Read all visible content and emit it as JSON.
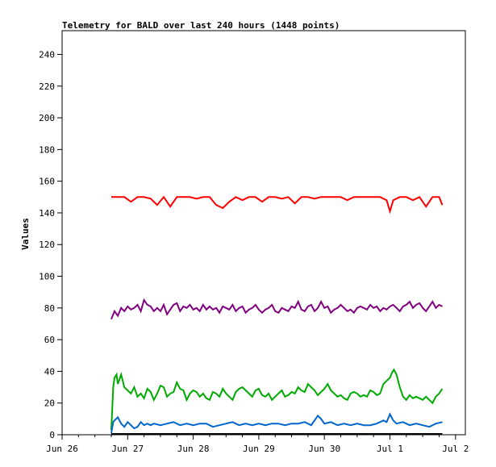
{
  "chart_data": {
    "type": "line",
    "title": "Telemetry for BALD over last 240 hours (1448 points)",
    "xlabel": "",
    "ylabel": "Values",
    "ylim": [
      0,
      255
    ],
    "yticks": [
      0,
      20,
      40,
      60,
      80,
      100,
      120,
      140,
      160,
      180,
      200,
      220,
      240
    ],
    "x_tick_labels": [
      "Jun 26",
      "Jun 27",
      "Jun 28",
      "Jun 29",
      "Jun 30",
      "Jul 1",
      "Jul 2"
    ],
    "x_range_days": [
      0,
      6.15
    ],
    "grid": false,
    "legend": "none",
    "series": [
      {
        "color": "#ff0000",
        "x": [
          0.75,
          0.85,
          0.95,
          1.05,
          1.15,
          1.25,
          1.35,
          1.45,
          1.55,
          1.65,
          1.75,
          1.85,
          1.95,
          2.05,
          2.15,
          2.25,
          2.35,
          2.45,
          2.55,
          2.65,
          2.75,
          2.85,
          2.95,
          3.05,
          3.15,
          3.25,
          3.35,
          3.45,
          3.55,
          3.65,
          3.75,
          3.85,
          3.95,
          4.05,
          4.15,
          4.25,
          4.35,
          4.45,
          4.55,
          4.65,
          4.75,
          4.85,
          4.95,
          5.0,
          5.05,
          5.15,
          5.25,
          5.35,
          5.45,
          5.55,
          5.65,
          5.75,
          5.8
        ],
        "values": [
          150,
          150,
          150,
          147,
          150,
          150,
          149,
          145,
          150,
          144,
          150,
          150,
          150,
          149,
          150,
          150,
          145,
          143,
          147,
          150,
          148,
          150,
          150,
          147,
          150,
          150,
          149,
          150,
          146,
          150,
          150,
          149,
          150,
          150,
          150,
          150,
          148,
          150,
          150,
          150,
          150,
          150,
          148,
          141,
          148,
          150,
          150,
          148,
          150,
          144,
          150,
          150,
          145
        ]
      },
      {
        "color": "#800080",
        "x": [
          0.75,
          0.8,
          0.85,
          0.9,
          0.95,
          1.0,
          1.05,
          1.1,
          1.15,
          1.2,
          1.25,
          1.3,
          1.35,
          1.4,
          1.45,
          1.5,
          1.55,
          1.6,
          1.65,
          1.7,
          1.75,
          1.8,
          1.85,
          1.9,
          1.95,
          2.0,
          2.05,
          2.1,
          2.15,
          2.2,
          2.25,
          2.3,
          2.35,
          2.4,
          2.45,
          2.5,
          2.55,
          2.6,
          2.65,
          2.7,
          2.75,
          2.8,
          2.85,
          2.9,
          2.95,
          3.0,
          3.05,
          3.1,
          3.15,
          3.2,
          3.25,
          3.3,
          3.35,
          3.4,
          3.45,
          3.5,
          3.55,
          3.6,
          3.65,
          3.7,
          3.75,
          3.8,
          3.85,
          3.9,
          3.95,
          4.0,
          4.05,
          4.1,
          4.15,
          4.2,
          4.25,
          4.3,
          4.35,
          4.4,
          4.45,
          4.5,
          4.55,
          4.6,
          4.65,
          4.7,
          4.75,
          4.8,
          4.85,
          4.9,
          4.95,
          5.0,
          5.05,
          5.1,
          5.15,
          5.2,
          5.25,
          5.3,
          5.35,
          5.4,
          5.45,
          5.5,
          5.55,
          5.6,
          5.65,
          5.7,
          5.75,
          5.8
        ],
        "values": [
          73,
          78,
          75,
          80,
          78,
          81,
          79,
          80,
          82,
          78,
          85,
          82,
          81,
          78,
          80,
          78,
          82,
          76,
          79,
          82,
          83,
          78,
          81,
          80,
          82,
          79,
          80,
          78,
          82,
          79,
          81,
          79,
          80,
          77,
          81,
          80,
          79,
          82,
          78,
          80,
          81,
          77,
          79,
          80,
          82,
          79,
          77,
          79,
          80,
          82,
          78,
          77,
          80,
          79,
          78,
          81,
          80,
          84,
          79,
          78,
          81,
          82,
          78,
          80,
          84,
          80,
          81,
          77,
          79,
          80,
          82,
          80,
          78,
          79,
          77,
          80,
          81,
          80,
          79,
          82,
          80,
          81,
          78,
          80,
          79,
          81,
          82,
          80,
          78,
          81,
          82,
          84,
          80,
          82,
          83,
          80,
          78,
          81,
          84,
          80,
          82,
          81
        ]
      },
      {
        "color": "#00aa00",
        "x": [
          0.75,
          0.78,
          0.8,
          0.83,
          0.85,
          0.9,
          0.95,
          1.0,
          1.05,
          1.1,
          1.15,
          1.2,
          1.25,
          1.3,
          1.35,
          1.4,
          1.45,
          1.5,
          1.55,
          1.6,
          1.65,
          1.7,
          1.75,
          1.8,
          1.85,
          1.9,
          1.95,
          2.0,
          2.05,
          2.1,
          2.15,
          2.2,
          2.25,
          2.3,
          2.35,
          2.4,
          2.45,
          2.5,
          2.55,
          2.6,
          2.65,
          2.7,
          2.75,
          2.8,
          2.85,
          2.9,
          2.95,
          3.0,
          3.05,
          3.1,
          3.15,
          3.2,
          3.25,
          3.3,
          3.35,
          3.4,
          3.45,
          3.5,
          3.55,
          3.6,
          3.65,
          3.7,
          3.75,
          3.8,
          3.85,
          3.9,
          3.95,
          4.0,
          4.05,
          4.1,
          4.15,
          4.2,
          4.25,
          4.3,
          4.35,
          4.4,
          4.45,
          4.5,
          4.55,
          4.6,
          4.65,
          4.7,
          4.75,
          4.8,
          4.85,
          4.9,
          4.95,
          5.0,
          5.03,
          5.06,
          5.1,
          5.15,
          5.2,
          5.25,
          5.3,
          5.35,
          5.4,
          5.45,
          5.5,
          5.55,
          5.6,
          5.65,
          5.7,
          5.75,
          5.8
        ],
        "values": [
          3,
          30,
          36,
          38,
          32,
          38,
          30,
          28,
          26,
          30,
          24,
          26,
          23,
          29,
          27,
          22,
          26,
          31,
          30,
          24,
          26,
          27,
          33,
          29,
          28,
          22,
          26,
          28,
          27,
          24,
          26,
          23,
          22,
          27,
          26,
          24,
          29,
          26,
          24,
          22,
          27,
          29,
          30,
          28,
          26,
          24,
          28,
          29,
          25,
          24,
          26,
          22,
          24,
          26,
          28,
          24,
          25,
          27,
          26,
          30,
          28,
          27,
          32,
          30,
          28,
          25,
          27,
          29,
          32,
          28,
          26,
          24,
          25,
          23,
          22,
          26,
          27,
          26,
          24,
          25,
          24,
          28,
          27,
          25,
          26,
          32,
          34,
          36,
          39,
          41,
          38,
          30,
          24,
          22,
          25,
          23,
          24,
          23,
          22,
          24,
          22,
          20,
          24,
          26,
          29
        ]
      },
      {
        "color": "#0066cc",
        "x": [
          0.75,
          0.78,
          0.8,
          0.85,
          0.9,
          0.95,
          1.0,
          1.05,
          1.1,
          1.15,
          1.2,
          1.25,
          1.3,
          1.35,
          1.4,
          1.5,
          1.6,
          1.7,
          1.8,
          1.9,
          2.0,
          2.1,
          2.2,
          2.3,
          2.4,
          2.5,
          2.6,
          2.7,
          2.8,
          2.9,
          3.0,
          3.1,
          3.2,
          3.3,
          3.4,
          3.5,
          3.6,
          3.7,
          3.8,
          3.85,
          3.9,
          3.95,
          4.0,
          4.1,
          4.2,
          4.3,
          4.4,
          4.5,
          4.6,
          4.7,
          4.8,
          4.9,
          4.95,
          5.0,
          5.05,
          5.1,
          5.2,
          5.3,
          5.4,
          5.5,
          5.6,
          5.7,
          5.8
        ],
        "values": [
          1,
          8,
          9,
          11,
          7,
          5,
          8,
          6,
          4,
          5,
          8,
          6,
          7,
          6,
          7,
          6,
          7,
          8,
          6,
          7,
          6,
          7,
          7,
          5,
          6,
          7,
          8,
          6,
          7,
          6,
          7,
          6,
          7,
          7,
          6,
          7,
          7,
          8,
          6,
          9,
          12,
          10,
          7,
          8,
          6,
          7,
          6,
          7,
          6,
          6,
          7,
          9,
          8,
          13,
          9,
          7,
          8,
          6,
          7,
          6,
          5,
          7,
          8
        ]
      },
      {
        "color": "#000000",
        "x": [
          0.75,
          5.8
        ],
        "values": [
          0.5,
          0.5
        ]
      }
    ]
  }
}
